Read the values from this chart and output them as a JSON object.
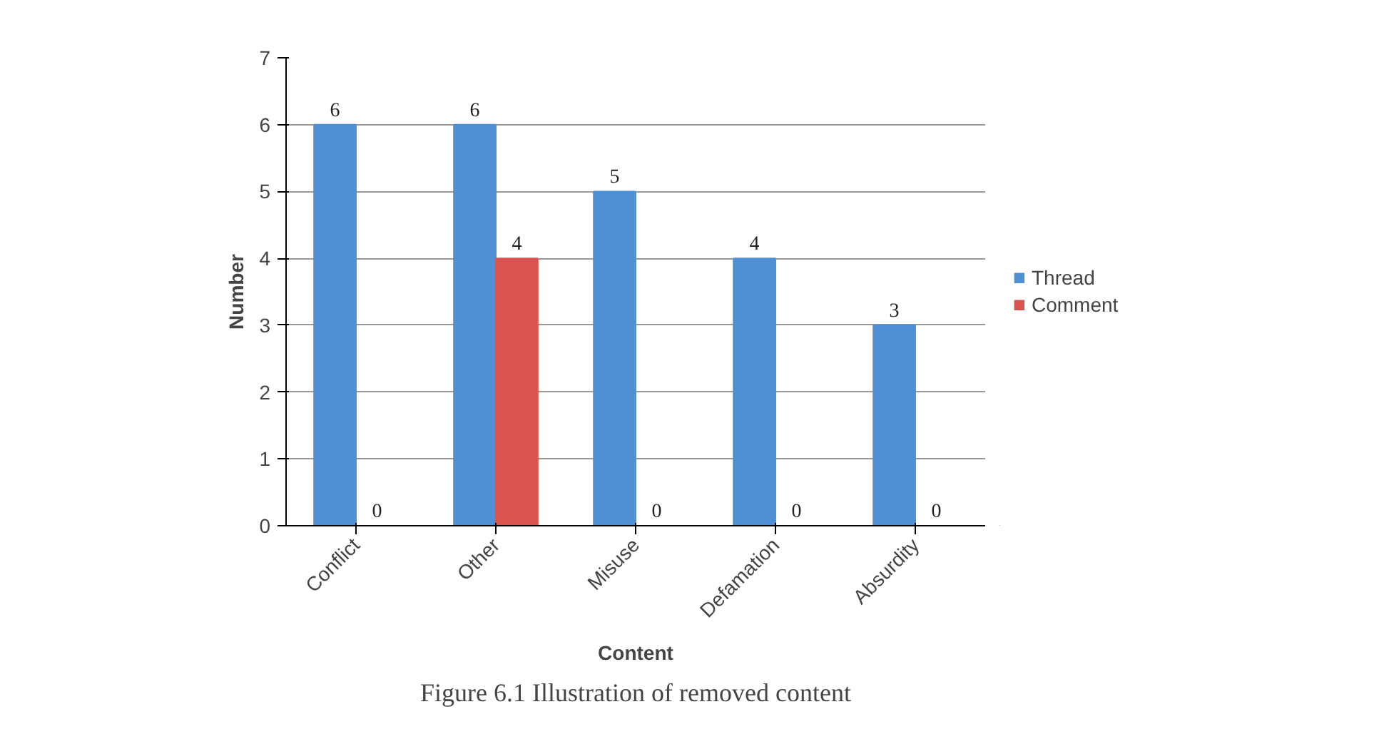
{
  "chart_data": {
    "type": "bar",
    "xlabel": "Content",
    "ylabel": "Number",
    "categories": [
      "Conflict",
      "Other",
      "Misuse",
      "Defamation",
      "Absurdity"
    ],
    "series": [
      {
        "name": "Thread",
        "color": "#4f8fd6",
        "values": [
          6,
          6,
          5,
          4,
          3
        ]
      },
      {
        "name": "Comment",
        "color": "#d9534f",
        "values": [
          0,
          4,
          0,
          0,
          0
        ]
      }
    ],
    "ylim": [
      0,
      7
    ],
    "yticks": [
      0,
      1,
      2,
      3,
      4,
      5,
      6,
      7
    ],
    "grid": "y",
    "legend": "right",
    "data_labels": true,
    "annotations": [
      "Figure 6.1 Illustration of removed content"
    ]
  }
}
